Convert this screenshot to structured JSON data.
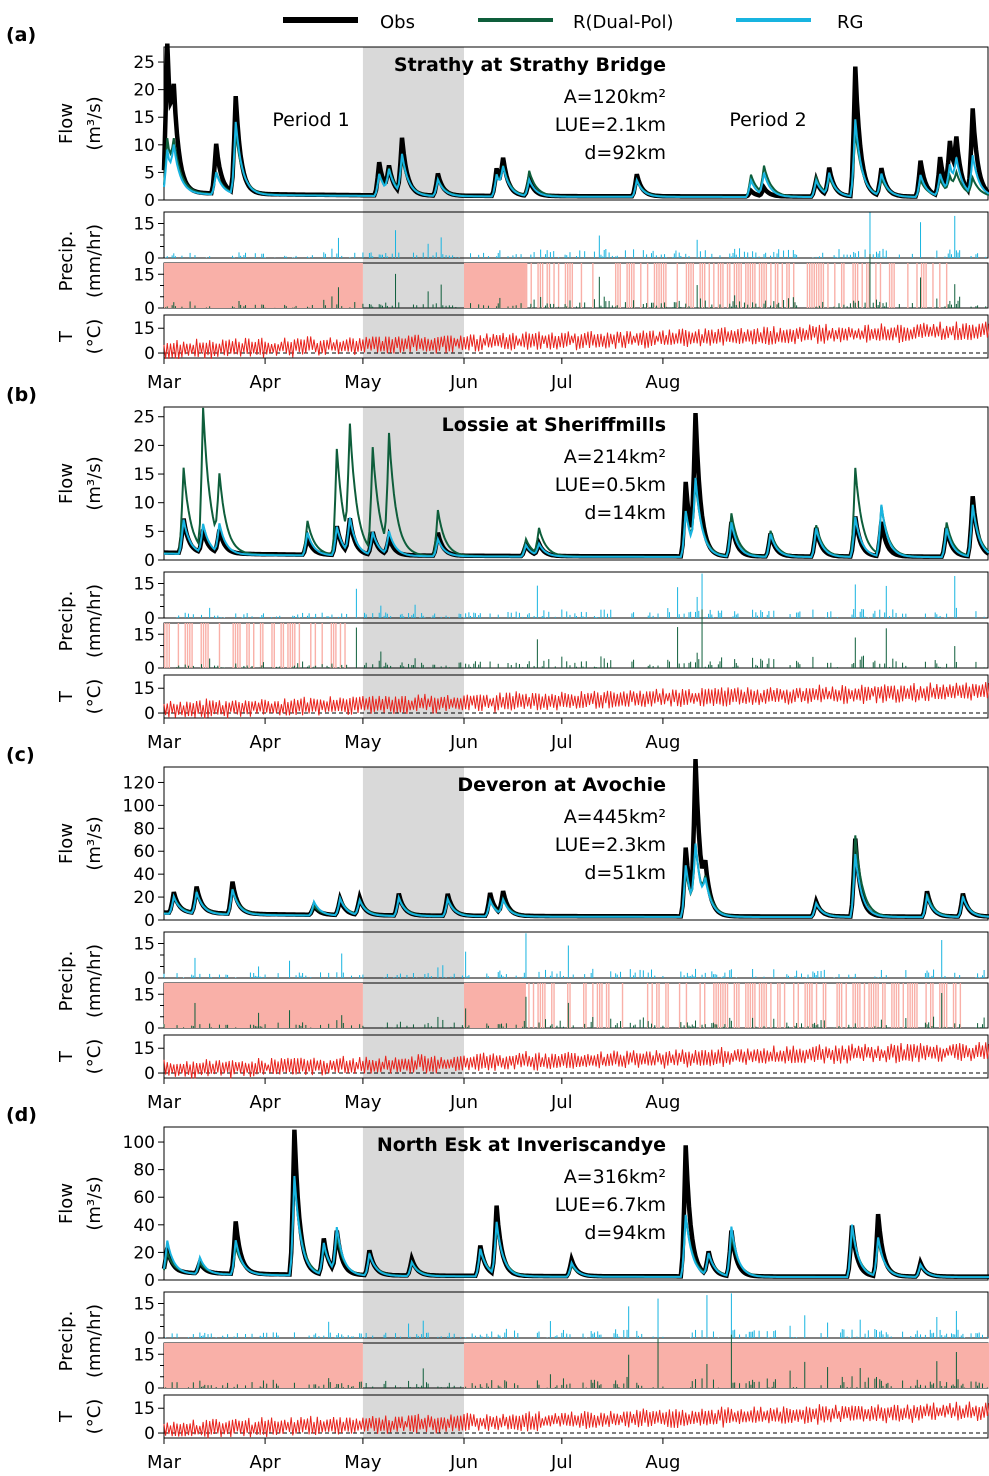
{
  "legend": {
    "items": [
      {
        "label": "Obs",
        "color": "#000000"
      },
      {
        "label": "R(Dual-Pol)",
        "color": "#0e5e3b"
      },
      {
        "label": "RG",
        "color": "#18b4e0"
      }
    ]
  },
  "labels": {
    "flow_axis_line1": "Flow",
    "flow_axis_line2": "(m³/s)",
    "precip_axis_line1": "Precip.",
    "precip_axis_line2": "(mm/hr)",
    "temp_axis_line1": "T",
    "temp_axis_line2": "(°C)",
    "period1": "Period 1",
    "period2": "Period 2"
  },
  "months": [
    "Mar",
    "Apr",
    "May",
    "Jun",
    "Jul",
    "Aug"
  ],
  "colors": {
    "obs": "#000000",
    "dualpol": "#0e5e3b",
    "rg": "#18b4e0",
    "temp": "#e8231c",
    "shade": "#d9d9d9",
    "dualpol_missing": "#f9b0a8"
  },
  "chart_data": [
    {
      "type": "line",
      "panel": "(a)",
      "title": "Strathy at Strathy Bridge",
      "info": [
        "A=120km²",
        "LUE=2.1km",
        "d=92km"
      ],
      "flow_ylim": [
        0,
        27
      ],
      "flow_ticks": [
        0,
        5,
        10,
        15,
        20,
        25
      ],
      "peaks": [
        {
          "day": 1,
          "obs": 27,
          "dp": 10,
          "rg": 8
        },
        {
          "day": 3,
          "obs": 12,
          "dp": 6,
          "rg": 6
        },
        {
          "day": 16,
          "obs": 9,
          "dp": 4,
          "rg": 4
        },
        {
          "day": 22,
          "obs": 17.5,
          "dp": 11,
          "rg": 13
        },
        {
          "day": 66,
          "obs": 6,
          "dp": 4,
          "rg": 4
        },
        {
          "day": 69,
          "obs": 4.5,
          "dp": 4,
          "rg": 4
        },
        {
          "day": 73,
          "obs": 10,
          "dp": 6,
          "rg": 7
        },
        {
          "day": 84,
          "obs": 4,
          "dp": 3,
          "rg": 3
        },
        {
          "day": 102,
          "obs": 5,
          "dp": 4,
          "rg": 4
        },
        {
          "day": 104,
          "obs": 5.5,
          "dp": 4,
          "rg": 4
        },
        {
          "day": 112,
          "obs": 3,
          "dp": 4.5,
          "rg": 3
        },
        {
          "day": 145,
          "obs": 4,
          "dp": 3,
          "rg": 3
        },
        {
          "day": 180,
          "obs": 1,
          "dp": 4,
          "rg": 3
        },
        {
          "day": 184,
          "obs": 1.5,
          "dp": 5,
          "rg": 4
        },
        {
          "day": 200,
          "obs": 3,
          "dp": 3.5,
          "rg": 3
        },
        {
          "day": 204,
          "obs": 5,
          "dp": 3,
          "rg": 4
        },
        {
          "day": 212,
          "obs": 23.5,
          "dp": 12,
          "rg": 14
        },
        {
          "day": 220,
          "obs": 5,
          "dp": 3,
          "rg": 4
        },
        {
          "day": 232,
          "obs": 6.5,
          "dp": 3,
          "rg": 4
        },
        {
          "day": 238,
          "obs": 7,
          "dp": 3,
          "rg": 4
        },
        {
          "day": 241,
          "obs": 9,
          "dp": 3,
          "rg": 5
        },
        {
          "day": 243,
          "obs": 8,
          "dp": 3,
          "rg": 5
        },
        {
          "day": 248,
          "obs": 15.5,
          "dp": 3,
          "rg": 7
        }
      ],
      "dp_missing_periods": "solid-then-striped"
    },
    {
      "type": "line",
      "panel": "(b)",
      "title": "Lossie at Sheriffmills",
      "info": [
        "A=214km²",
        "LUE=0.5km",
        "d=14km"
      ],
      "flow_ylim": [
        0,
        26
      ],
      "flow_ticks": [
        0,
        5,
        10,
        15,
        20,
        25
      ],
      "peaks": [
        {
          "day": 6,
          "obs": 6,
          "dp": 15,
          "rg": 6
        },
        {
          "day": 12,
          "obs": 4,
          "dp": 24.5,
          "rg": 5
        },
        {
          "day": 17,
          "obs": 4,
          "dp": 11.5,
          "rg": 5
        },
        {
          "day": 44,
          "obs": 3,
          "dp": 6,
          "rg": 4
        },
        {
          "day": 53,
          "obs": 5,
          "dp": 18.5,
          "rg": 5
        },
        {
          "day": 57,
          "obs": 6,
          "dp": 20,
          "rg": 6
        },
        {
          "day": 64,
          "obs": 4,
          "dp": 18,
          "rg": 4
        },
        {
          "day": 69,
          "obs": 3,
          "dp": 19.5,
          "rg": 4
        },
        {
          "day": 84,
          "obs": 4,
          "dp": 8,
          "rg": 3
        },
        {
          "day": 111,
          "obs": 2,
          "dp": 3,
          "rg": 2
        },
        {
          "day": 115,
          "obs": 2,
          "dp": 4.5,
          "rg": 2
        },
        {
          "day": 160,
          "obs": 13,
          "dp": 8,
          "rg": 8
        },
        {
          "day": 163,
          "obs": 23,
          "dp": 11,
          "rg": 12
        },
        {
          "day": 174,
          "obs": 6,
          "dp": 7.5,
          "rg": 6
        },
        {
          "day": 186,
          "obs": 4,
          "dp": 4.5,
          "rg": 4
        },
        {
          "day": 200,
          "obs": 5,
          "dp": 5.5,
          "rg": 5
        },
        {
          "day": 212,
          "obs": 7,
          "dp": 15.5,
          "rg": 7
        },
        {
          "day": 220,
          "obs": 6,
          "dp": 8.5,
          "rg": 9
        },
        {
          "day": 240,
          "obs": 5,
          "dp": 6,
          "rg": 5
        },
        {
          "day": 248,
          "obs": 10.5,
          "dp": 9,
          "rg": 9
        }
      ],
      "dp_missing_periods": "striped-early"
    },
    {
      "type": "line",
      "panel": "(c)",
      "title": "Deveron at Avochie",
      "info": [
        "A=445km²",
        "LUE=2.3km",
        "d=51km"
      ],
      "flow_ylim": [
        0,
        130
      ],
      "flow_ticks": [
        0,
        20,
        40,
        60,
        80,
        100,
        120
      ],
      "peaks": [
        {
          "day": 3,
          "obs": 18,
          "dp": 15,
          "rg": 15
        },
        {
          "day": 10,
          "obs": 23,
          "dp": 18,
          "rg": 19
        },
        {
          "day": 21,
          "obs": 28,
          "dp": 22,
          "rg": 22
        },
        {
          "day": 46,
          "obs": 8,
          "dp": 8,
          "rg": 12
        },
        {
          "day": 54,
          "obs": 14,
          "dp": 15,
          "rg": 15
        },
        {
          "day": 60,
          "obs": 15,
          "dp": 13,
          "rg": 13
        },
        {
          "day": 72,
          "obs": 19,
          "dp": 16,
          "rg": 16
        },
        {
          "day": 87,
          "obs": 19,
          "dp": 15,
          "rg": 15
        },
        {
          "day": 100,
          "obs": 20,
          "dp": 14,
          "rg": 14
        },
        {
          "day": 104,
          "obs": 20,
          "dp": 13,
          "rg": 13
        },
        {
          "day": 160,
          "obs": 60,
          "dp": 40,
          "rg": 45
        },
        {
          "day": 163,
          "obs": 128,
          "dp": 52,
          "rg": 54
        },
        {
          "day": 166,
          "obs": 28,
          "dp": 20,
          "rg": 20
        },
        {
          "day": 200,
          "obs": 13,
          "dp": 12,
          "rg": 12
        },
        {
          "day": 212,
          "obs": 68,
          "dp": 71,
          "rg": 55
        },
        {
          "day": 234,
          "obs": 22,
          "dp": 20,
          "rg": 18
        },
        {
          "day": 245,
          "obs": 20,
          "dp": 17,
          "rg": 18
        }
      ],
      "dp_missing_periods": "solid-then-striped"
    },
    {
      "type": "line",
      "panel": "(d)",
      "title": "North Esk at Inveriscandye",
      "info": [
        "A=316km²",
        "LUE=6.7km",
        "d=94km"
      ],
      "flow_ylim": [
        0,
        108
      ],
      "flow_ticks": [
        0,
        20,
        40,
        60,
        80,
        100
      ],
      "peaks": [
        {
          "day": 1,
          "obs": 18,
          "dp": 15,
          "rg": 24
        },
        {
          "day": 11,
          "obs": 8,
          "dp": 8,
          "rg": 12
        },
        {
          "day": 22,
          "obs": 38,
          "dp": 20,
          "rg": 25
        },
        {
          "day": 40,
          "obs": 105,
          "dp": 70,
          "rg": 72
        },
        {
          "day": 49,
          "obs": 26,
          "dp": 20,
          "rg": 23
        },
        {
          "day": 53,
          "obs": 30,
          "dp": 25,
          "rg": 32
        },
        {
          "day": 63,
          "obs": 18,
          "dp": 15,
          "rg": 16
        },
        {
          "day": 76,
          "obs": 12,
          "dp": 10,
          "rg": 10
        },
        {
          "day": 97,
          "obs": 22,
          "dp": 20,
          "rg": 20
        },
        {
          "day": 102,
          "obs": 50,
          "dp": 35,
          "rg": 38
        },
        {
          "day": 125,
          "obs": 12,
          "dp": 8,
          "rg": 10
        },
        {
          "day": 160,
          "obs": 95,
          "dp": 44,
          "rg": 45
        },
        {
          "day": 167,
          "obs": 17,
          "dp": 15,
          "rg": 16
        },
        {
          "day": 174,
          "obs": 33,
          "dp": 30,
          "rg": 36
        },
        {
          "day": 211,
          "obs": 37,
          "dp": 35,
          "rg": 38
        },
        {
          "day": 219,
          "obs": 45,
          "dp": 25,
          "rg": 28
        },
        {
          "day": 232,
          "obs": 10,
          "dp": 8,
          "rg": 9
        }
      ],
      "dp_missing_periods": "solid"
    }
  ]
}
